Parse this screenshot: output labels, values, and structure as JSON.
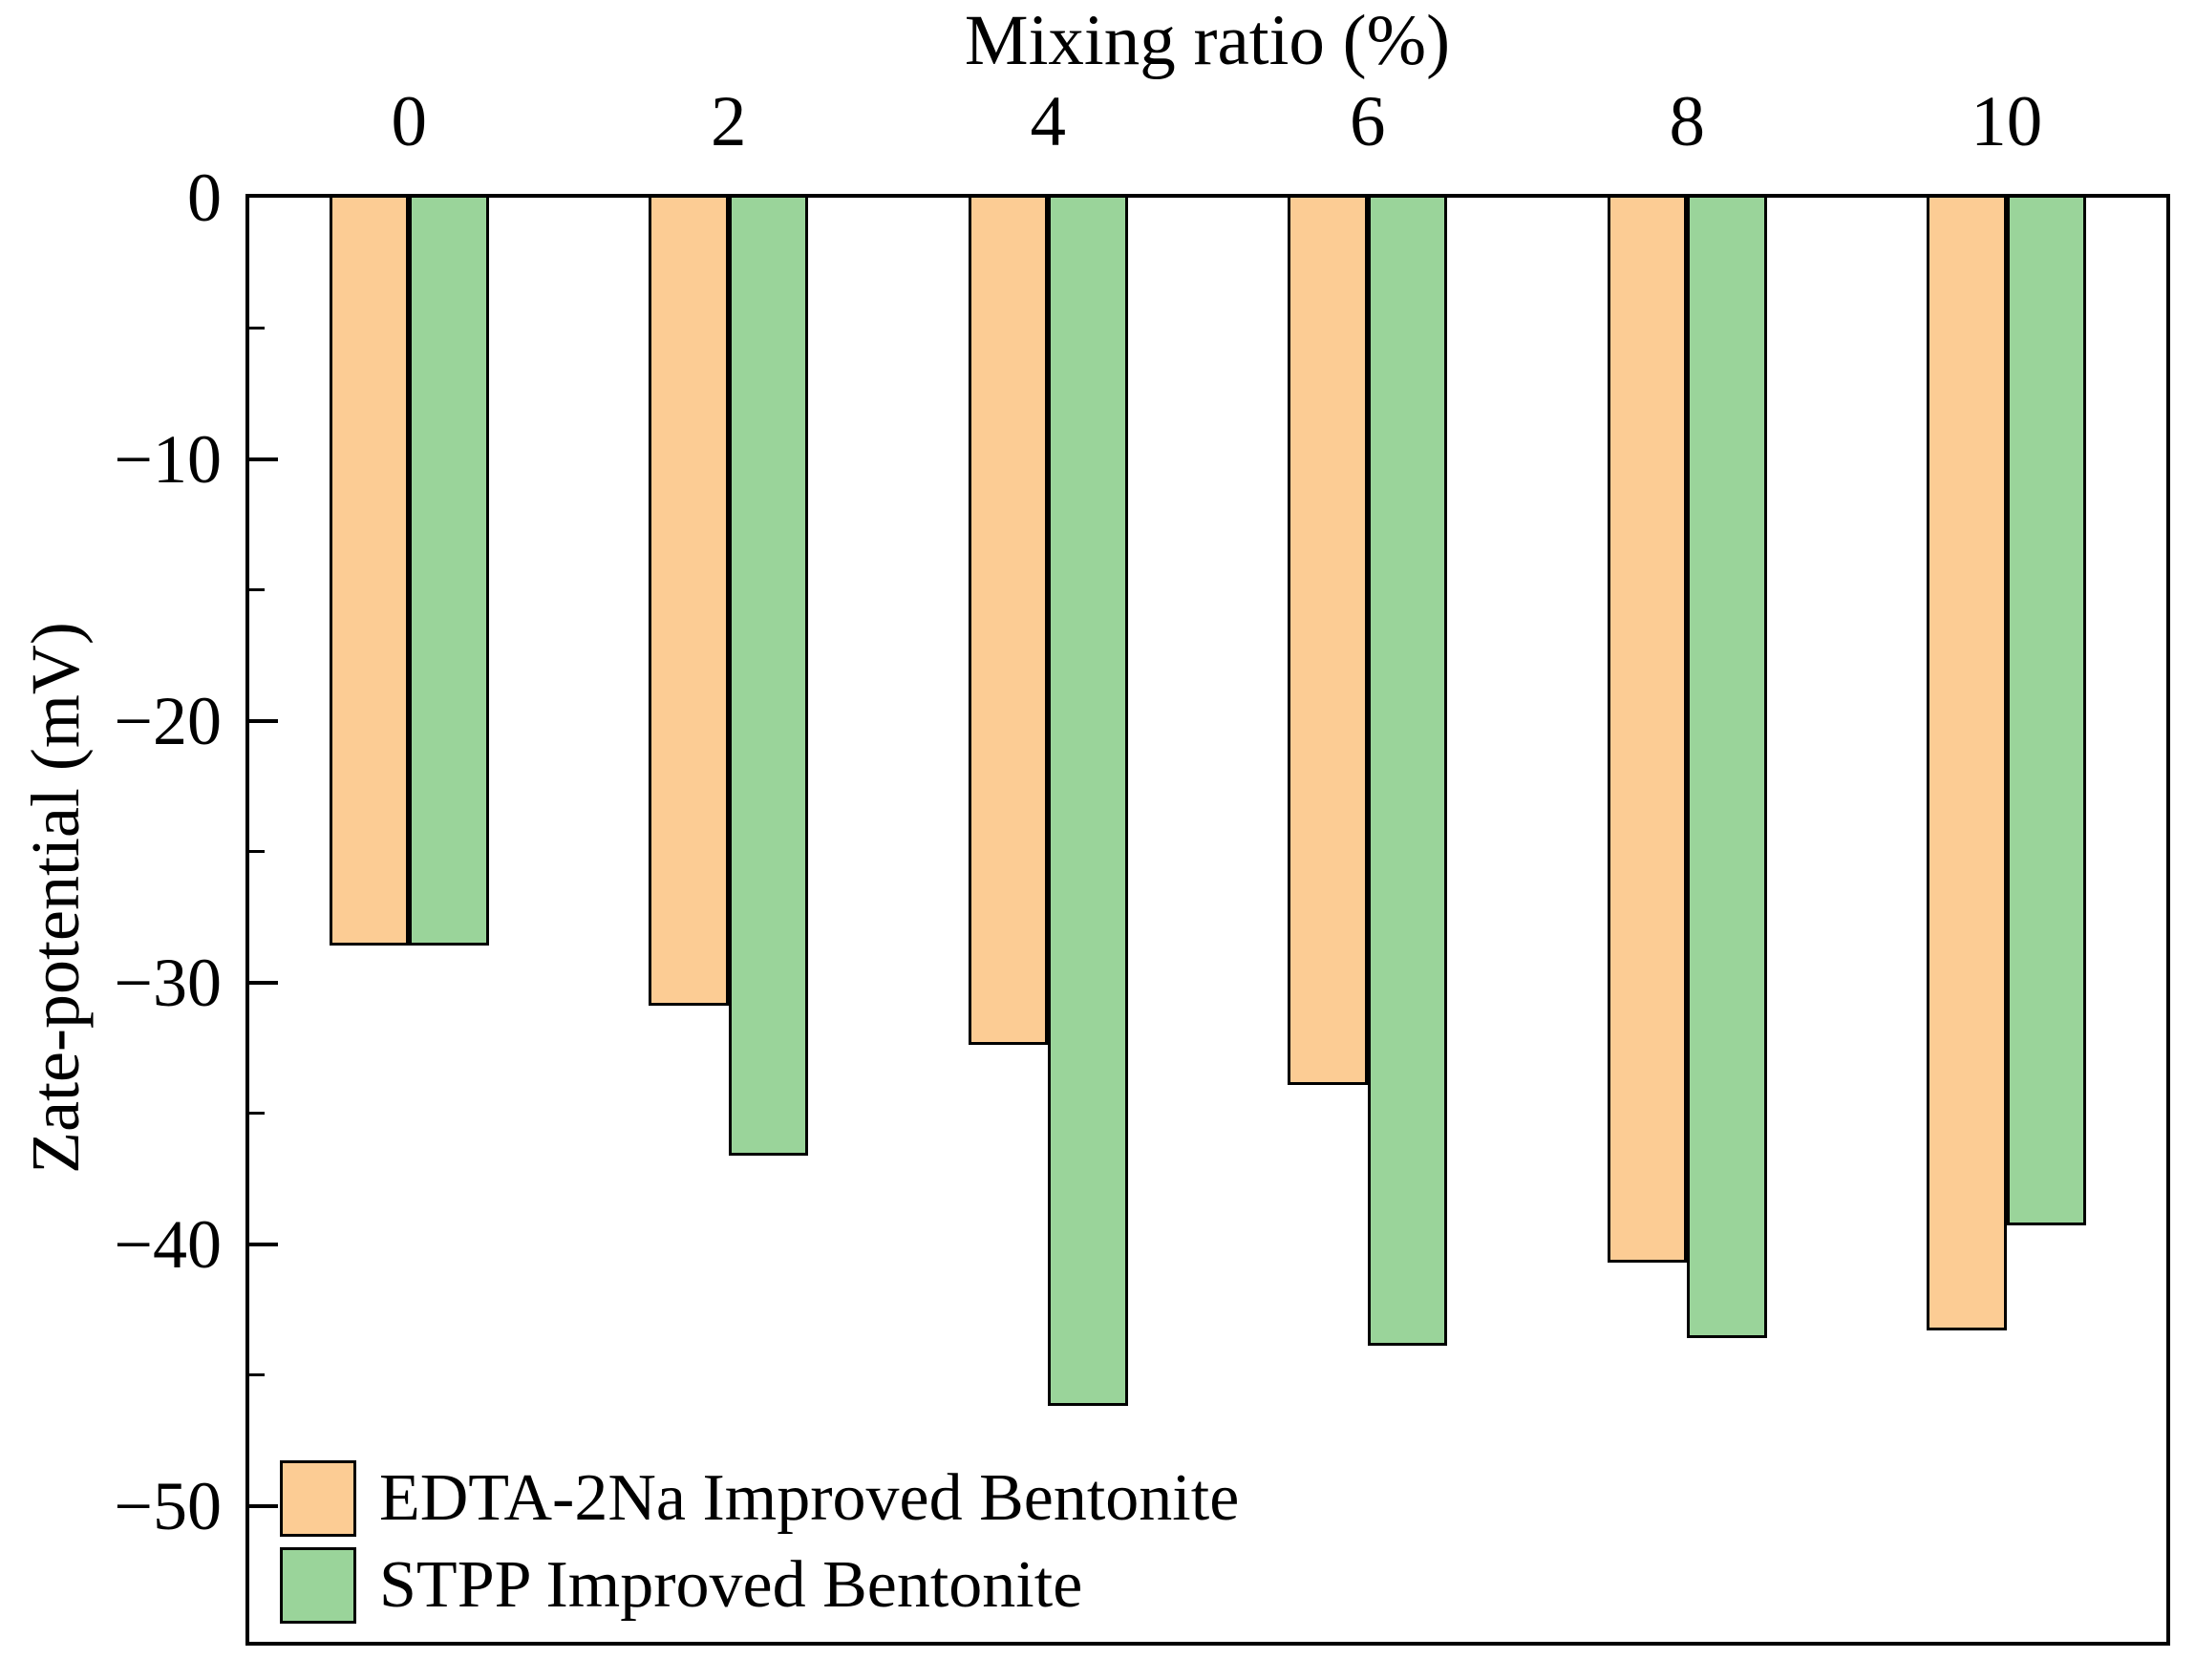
{
  "chart_data": {
    "type": "bar",
    "orientation": "vertical-downward",
    "title": "Mixing ratio (%)",
    "xlabel": "Mixing ratio (%)",
    "ylabel": "Zate-potential (mV)",
    "x_axis_position": "top",
    "categories": [
      "0",
      "2",
      "4",
      "6",
      "8",
      "10"
    ],
    "series": [
      {
        "name": "EDTA-2Na Improved Bentonite",
        "color": "#FCCC94",
        "values": [
          -28.6,
          -30.9,
          -32.4,
          -33.9,
          -40.7,
          -43.3
        ]
      },
      {
        "name": "STPP Improved Bentonite",
        "color": "#9AD49A",
        "values": [
          -28.6,
          -36.6,
          -46.2,
          -43.9,
          -43.6,
          -39.3
        ]
      }
    ],
    "ylim": [
      0,
      -55.2
    ],
    "y_ticks": [
      0,
      -10,
      -20,
      -30,
      -40,
      -50
    ],
    "y_tick_labels": [
      "0",
      "−10",
      "−20",
      "−30",
      "−40",
      "−50"
    ],
    "y_minor_ticks": [
      -5,
      -15,
      -25,
      -35,
      -45
    ],
    "grid": false,
    "legend_position": "bottom-left",
    "bar_edge_color": "#000000",
    "axis_color": "#000000"
  },
  "legend": {
    "items": [
      {
        "label": "EDTA-2Na Improved Bentonite",
        "color": "#FCCC94"
      },
      {
        "label": "STPP Improved Bentonite",
        "color": "#9AD49A"
      }
    ]
  }
}
